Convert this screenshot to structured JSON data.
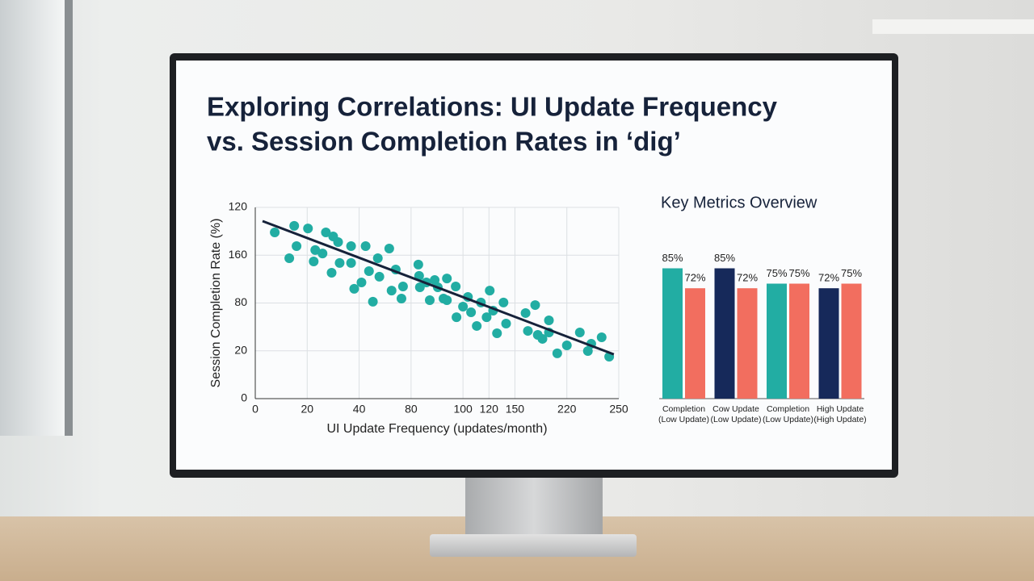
{
  "title": [
    "Exploring Correlations: UI Update Frequency",
    "vs. Session Completion Rates in ‘dig’"
  ],
  "chart_data": [
    {
      "type": "scatter",
      "x_label": "UI Update Frequency (updates/month)",
      "y_label": "Session Completion Rate (%)",
      "xlim": [
        0,
        140
      ],
      "ylim": [
        0,
        120
      ],
      "xticks": [
        0,
        20,
        40,
        {
          "value": 60,
          "label": "80"
        },
        {
          "value": 80,
          "label": "100"
        },
        {
          "value": 90,
          "label": "120"
        },
        {
          "value": 100,
          "label": "150"
        },
        {
          "value": 120,
          "label": "220"
        },
        {
          "value": 140,
          "label": "250"
        }
      ],
      "yticks": [
        0,
        {
          "value": 30,
          "label": "20"
        },
        {
          "value": 60,
          "label": "80"
        },
        {
          "value": 90,
          "label": "160"
        },
        120
      ],
      "grid": true,
      "color": "#22ada3",
      "x": [
        7.5,
        13.1,
        15,
        15.9,
        20.3,
        22.5,
        23.1,
        25.9,
        27.2,
        29.4,
        30,
        31.9,
        32.5,
        36.9,
        36.9,
        38.1,
        40.9,
        42.5,
        43.8,
        45.3,
        47.2,
        47.8,
        51.6,
        52.5,
        54.1,
        56.3,
        56.9,
        62.8,
        63.1,
        63.4,
        65.9,
        67.2,
        69.1,
        70.3,
        72.5,
        73.8,
        73.8,
        77.2,
        77.5,
        80,
        81.9,
        83.1,
        85.3,
        86.9,
        89.1,
        90.3,
        91.6,
        93.1,
        95.6,
        96.6,
        104.1,
        105,
        107.8,
        108.8,
        110.6,
        113.1,
        113.1,
        116.3,
        120,
        125,
        128.1,
        129.4,
        133.4,
        136.3
      ],
      "values": [
        104.3,
        88.1,
        108.4,
        95.7,
        106.8,
        86.1,
        93.2,
        91.1,
        104.3,
        79,
        101.8,
        98.2,
        85.1,
        85.1,
        95.7,
        68.9,
        72.9,
        95.7,
        80,
        60.8,
        88.1,
        76.5,
        94.2,
        67.8,
        81,
        62.8,
        70.4,
        84.1,
        77,
        69.9,
        72.9,
        61.8,
        74.4,
        69.9,
        62.8,
        75.4,
        61.8,
        70.4,
        51.1,
        57.7,
        63.8,
        54.2,
        45.6,
        60.3,
        51.1,
        67.8,
        55.2,
        41,
        60.3,
        47.1,
        53.7,
        42.5,
        58.7,
        40,
        37.5,
        49.1,
        41.5,
        28.4,
        33.4,
        41.5,
        29.9,
        34.4,
        38.5,
        26.3
      ],
      "trend_line": {
        "color": "#16223a",
        "x": [
          2.8,
          138.1
        ],
        "values": [
          111.4,
          27.8
        ]
      }
    },
    {
      "type": "bar",
      "title": "Key Metrics Overview",
      "categories": [
        [
          "Completion",
          "(Low Update)"
        ],
        [
          "Cow Update",
          "(Low Update)"
        ],
        [
          "Completion",
          "(Low Update)"
        ],
        [
          "High Update",
          "(High Update)"
        ]
      ],
      "series": [
        {
          "colors": [
            "#22ada3",
            "#16295a",
            "#22ada3",
            "#16295a"
          ],
          "values": [
            85,
            85,
            75,
            72
          ],
          "value_labels": [
            "85%",
            "85%",
            "75%",
            "72%"
          ]
        },
        {
          "color": "#f26e5f",
          "values": [
            72,
            72,
            75,
            75
          ],
          "value_labels": [
            "72%",
            "72%",
            "75%",
            "75%"
          ]
        }
      ]
    }
  ]
}
